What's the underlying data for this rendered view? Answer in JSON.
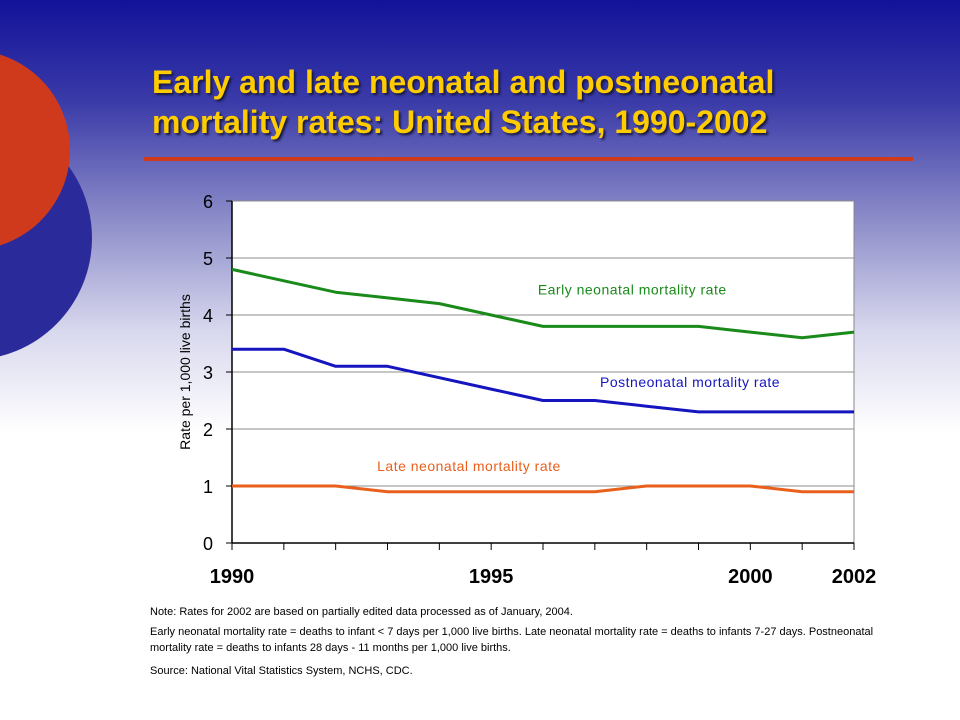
{
  "slide": {
    "title_line1": "Early and late neonatal and postneonatal",
    "title_line2": "mortality rates: United States, 1990-2002",
    "colors": {
      "title": "#ffcc00",
      "rule": "#d03a1c",
      "decor_red": "#d03a1c",
      "decor_blue": "#2a2a9a"
    }
  },
  "chart_data": {
    "type": "line",
    "title": "",
    "xlabel": "",
    "ylabel": "Rate per 1,000 live births",
    "xlim": [
      1990,
      2002
    ],
    "ylim": [
      0,
      6
    ],
    "yticks": [
      0,
      1,
      2,
      3,
      4,
      5,
      6
    ],
    "xtick_labels": [
      "1990",
      "1995",
      "2000",
      "2002"
    ],
    "grid": "horizontal",
    "x": [
      1990,
      1991,
      1992,
      1993,
      1994,
      1995,
      1996,
      1997,
      1998,
      1999,
      2000,
      2001,
      2002
    ],
    "series": [
      {
        "name": "Early neonatal mortality rate",
        "color": "#1a8a1a",
        "values": [
          4.8,
          4.6,
          4.4,
          4.3,
          4.2,
          4.0,
          3.8,
          3.8,
          3.8,
          3.8,
          3.7,
          3.6,
          3.7
        ]
      },
      {
        "name": "Postneonatal mortality rate",
        "color": "#1515c0",
        "values": [
          3.4,
          3.4,
          3.1,
          3.1,
          2.9,
          2.7,
          2.5,
          2.5,
          2.4,
          2.3,
          2.3,
          2.3,
          2.3
        ]
      },
      {
        "name": "Late neonatal mortality rate",
        "color": "#e8601c",
        "values": [
          1.0,
          1.0,
          1.0,
          0.9,
          0.9,
          0.9,
          0.9,
          0.9,
          1.0,
          1.0,
          1.0,
          0.9,
          0.9
        ]
      }
    ]
  },
  "notes": {
    "note": "Note: Rates for 2002 are based on partially edited data processed as of January, 2004.",
    "definitions": "Early neonatal mortality rate = deaths to infant < 7 days per 1,000 live births. Late neonatal mortality rate = deaths to infants 7-27 days.  Postneonatal mortality rate = deaths to infants 28 days - 11 months per 1,000 live births.",
    "source": "Source: National Vital Statistics System, NCHS, CDC."
  }
}
